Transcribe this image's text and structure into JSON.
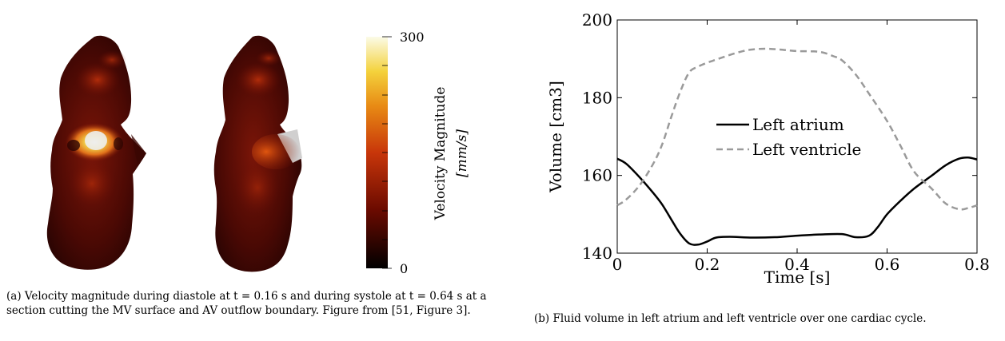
{
  "panel_a": {
    "colorbar": {
      "label_line1": "Velocity Magnitude",
      "label_line2": "[mm/s]",
      "max_label": "300",
      "min_label": "0",
      "max": 300,
      "min": 0
    },
    "caption": "(a) Velocity magnitude during diastole at t = 0.16 s and during systole at t = 0.64 s at a section cutting the MV surface and AV outflow boundary. Figure from [51, Figure 3]."
  },
  "panel_b": {
    "caption": "(b) Fluid volume in left atrium and left ventricle over one cardiac cycle."
  },
  "chart_data": {
    "type": "line",
    "xlabel": "Time [s]",
    "ylabel": "Volume [cm3]",
    "xlim": [
      0,
      0.8
    ],
    "ylim": [
      140,
      200
    ],
    "xticks": [
      "0",
      "0.2",
      "0.4",
      "0.6",
      "0.8"
    ],
    "yticks": [
      "140",
      "160",
      "180",
      "200"
    ],
    "xtick_values": [
      0,
      0.2,
      0.4,
      0.6,
      0.8
    ],
    "ytick_values": [
      140,
      160,
      180,
      200
    ],
    "grid": false,
    "legend_position": "center",
    "series": [
      {
        "name": "Left atrium",
        "style": "solid",
        "color": "#000000",
        "x": [
          0,
          0.02,
          0.05,
          0.08,
          0.1,
          0.12,
          0.14,
          0.16,
          0.18,
          0.2,
          0.22,
          0.25,
          0.3,
          0.35,
          0.4,
          0.45,
          0.5,
          0.53,
          0.56,
          0.58,
          0.6,
          0.63,
          0.66,
          0.7,
          0.73,
          0.76,
          0.78,
          0.8
        ],
        "values": [
          164.3,
          163,
          159.5,
          155.5,
          152.5,
          148.7,
          145,
          142.5,
          142.2,
          143,
          144,
          144.2,
          144,
          144.1,
          144.5,
          144.8,
          144.9,
          144.1,
          144.5,
          146.8,
          150,
          153.5,
          156.6,
          160,
          162.6,
          164.3,
          164.6,
          164.1
        ]
      },
      {
        "name": "Left ventricle",
        "style": "dashed",
        "color": "#9a9a9a",
        "x": [
          0,
          0.02,
          0.05,
          0.08,
          0.1,
          0.12,
          0.14,
          0.16,
          0.18,
          0.2,
          0.22,
          0.25,
          0.28,
          0.3,
          0.33,
          0.36,
          0.4,
          0.45,
          0.48,
          0.5,
          0.53,
          0.56,
          0.6,
          0.63,
          0.66,
          0.7,
          0.73,
          0.76,
          0.78,
          0.8
        ],
        "values": [
          152.3,
          153.8,
          157.5,
          163,
          168,
          175,
          181.5,
          186.5,
          188,
          189,
          189.8,
          191,
          192,
          192.4,
          192.6,
          192.4,
          192,
          191.8,
          190.7,
          189.6,
          186,
          181,
          174,
          167.6,
          161,
          156.5,
          152.8,
          151.3,
          151.6,
          152.3
        ]
      }
    ]
  }
}
